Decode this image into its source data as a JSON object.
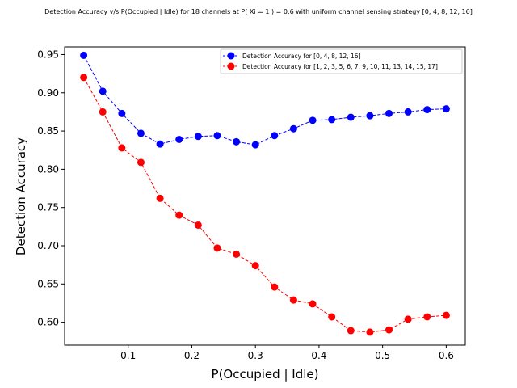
{
  "chart_data": {
    "type": "line",
    "title": "Detection Accuracy v/s P(Occupied | Idle) for 18 channels at P( Xi = 1 ) = 0.6 with uniform channel sensing strategy [0, 4, 8, 12, 16]",
    "xlabel": "P(Occupied | Idle)",
    "ylabel": "Detection Accuracy",
    "xlim": [
      0.0,
      0.63
    ],
    "ylim": [
      0.57,
      0.96
    ],
    "xticks": [
      0.1,
      0.2,
      0.3,
      0.4,
      0.5,
      0.6
    ],
    "xtick_labels": [
      "0.1",
      "0.2",
      "0.3",
      "0.4",
      "0.5",
      "0.6"
    ],
    "yticks": [
      0.6,
      0.65,
      0.7,
      0.75,
      0.8,
      0.85,
      0.9,
      0.95
    ],
    "ytick_labels": [
      "0.60",
      "0.65",
      "0.70",
      "0.75",
      "0.80",
      "0.85",
      "0.90",
      "0.95"
    ],
    "grid": false,
    "legend_position": "top-right",
    "x": [
      0.03,
      0.06,
      0.09,
      0.12,
      0.15,
      0.18,
      0.21,
      0.24,
      0.27,
      0.3,
      0.33,
      0.36,
      0.39,
      0.42,
      0.45,
      0.48,
      0.51,
      0.54,
      0.57,
      0.6
    ],
    "series": [
      {
        "name": "Detection Accuracy for [0, 4, 8, 12, 16]",
        "color": "#0000ff",
        "values": [
          0.949,
          0.902,
          0.873,
          0.847,
          0.833,
          0.839,
          0.843,
          0.844,
          0.836,
          0.832,
          0.844,
          0.853,
          0.864,
          0.865,
          0.868,
          0.87,
          0.873,
          0.875,
          0.878,
          0.879
        ]
      },
      {
        "name": "Detection Accuracy for [1, 2, 3, 5, 6, 7, 9, 10, 11, 13, 14, 15, 17]",
        "color": "#ff0000",
        "values": [
          0.92,
          0.875,
          0.828,
          0.809,
          0.762,
          0.74,
          0.727,
          0.697,
          0.689,
          0.674,
          0.646,
          0.629,
          0.624,
          0.607,
          0.589,
          0.587,
          0.59,
          0.604,
          0.607,
          0.609
        ]
      }
    ]
  }
}
